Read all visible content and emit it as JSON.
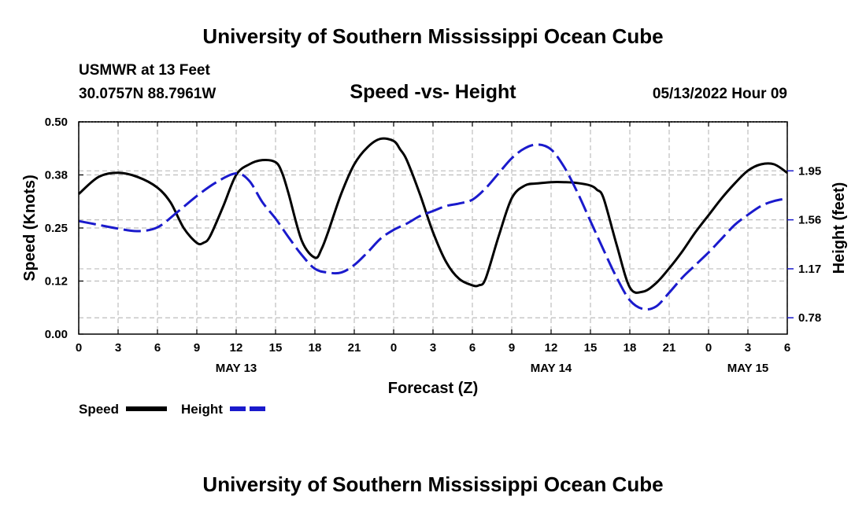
{
  "header": {
    "title": "University of Southern Mississippi Ocean Cube",
    "station": "USMWR at 13 Feet",
    "coords": "30.0757N  88.7961W",
    "subtitle": "Speed -vs- Height",
    "datetime": "05/13/2022 Hour 09"
  },
  "footer": {
    "title": "University of Southern Mississippi Ocean Cube"
  },
  "legend": {
    "speed_label": "Speed",
    "height_label": "Height"
  },
  "colors": {
    "speed": "#000000",
    "height": "#1a1acc"
  },
  "chart_data": {
    "type": "line",
    "title": "Speed -vs- Height",
    "xlabel": "Forecast (Z)",
    "ylabel_left": "Speed (Knots)",
    "ylabel_right": "Height (feet)",
    "x_range": [
      0,
      54
    ],
    "x_ticks": [
      0,
      3,
      6,
      9,
      12,
      15,
      18,
      21,
      24,
      27,
      30,
      33,
      36,
      39,
      42,
      45,
      48,
      51,
      54
    ],
    "x_tick_labels": [
      "0",
      "3",
      "6",
      "9",
      "12",
      "15",
      "18",
      "21",
      "0",
      "3",
      "6",
      "9",
      "12",
      "15",
      "18",
      "21",
      "0",
      "3",
      "6"
    ],
    "date_labels": [
      {
        "x": 12,
        "label": "MAY 13"
      },
      {
        "x": 36,
        "label": "MAY 14"
      },
      {
        "x": 51,
        "label": "MAY 15"
      }
    ],
    "y_left": {
      "range": [
        0,
        0.5
      ],
      "ticks": [
        0,
        0.125,
        0.25,
        0.375,
        0.5
      ],
      "tick_labels": [
        "0.00",
        "0.12",
        "0.25",
        "0.38",
        "0.50"
      ]
    },
    "y_right": {
      "range": [
        0.65,
        2.34
      ],
      "ticks": [
        0.78,
        1.17,
        1.56,
        1.95
      ],
      "tick_labels": [
        "0.78",
        "1.17",
        "1.56",
        "1.95"
      ]
    },
    "grid": true,
    "series": [
      {
        "name": "Speed",
        "axis": "left",
        "style": "solid",
        "x": [
          0,
          1.5,
          3,
          4.5,
          6,
          7,
          8,
          9,
          9.5,
          10,
          11,
          12,
          13,
          14,
          15,
          15.5,
          16,
          17,
          18,
          18.5,
          19,
          20,
          21,
          22,
          23,
          24,
          24.5,
          25,
          26,
          27,
          28,
          29,
          30,
          30.5,
          31,
          32,
          33,
          34,
          35,
          36,
          37,
          38,
          39,
          39.5,
          40,
          41,
          42,
          43,
          44,
          45,
          46,
          47,
          48,
          49,
          50,
          51,
          52,
          53,
          54
        ],
        "y": [
          0.33,
          0.37,
          0.38,
          0.37,
          0.345,
          0.31,
          0.25,
          0.215,
          0.215,
          0.23,
          0.3,
          0.375,
          0.4,
          0.41,
          0.405,
          0.38,
          0.33,
          0.22,
          0.18,
          0.2,
          0.24,
          0.33,
          0.4,
          0.44,
          0.46,
          0.455,
          0.435,
          0.41,
          0.33,
          0.24,
          0.17,
          0.13,
          0.115,
          0.115,
          0.13,
          0.23,
          0.32,
          0.35,
          0.355,
          0.358,
          0.358,
          0.356,
          0.35,
          0.34,
          0.32,
          0.21,
          0.11,
          0.1,
          0.12,
          0.155,
          0.195,
          0.24,
          0.28,
          0.32,
          0.355,
          0.385,
          0.4,
          0.4,
          0.38
        ]
      },
      {
        "name": "Height",
        "axis": "right",
        "style": "dashed",
        "x": [
          0,
          1.5,
          3,
          4.5,
          6,
          7.5,
          9,
          10.5,
          12,
          13,
          14,
          15,
          16,
          17,
          18,
          19,
          20,
          21,
          22,
          23,
          24,
          25,
          26,
          27,
          28,
          29,
          30,
          31,
          32,
          33,
          34,
          35,
          36,
          37,
          38,
          39,
          40,
          41,
          42,
          43,
          44,
          45,
          46,
          47,
          48,
          49,
          50,
          51,
          52,
          53,
          54
        ],
        "y": [
          1.55,
          1.52,
          1.49,
          1.47,
          1.5,
          1.62,
          1.75,
          1.86,
          1.93,
          1.87,
          1.7,
          1.57,
          1.42,
          1.28,
          1.17,
          1.14,
          1.14,
          1.2,
          1.3,
          1.41,
          1.48,
          1.53,
          1.59,
          1.63,
          1.67,
          1.69,
          1.72,
          1.81,
          1.93,
          2.05,
          2.13,
          2.16,
          2.12,
          1.98,
          1.78,
          1.55,
          1.32,
          1.1,
          0.92,
          0.85,
          0.87,
          0.98,
          1.1,
          1.2,
          1.3,
          1.41,
          1.52,
          1.6,
          1.67,
          1.71,
          1.73
        ]
      }
    ]
  }
}
